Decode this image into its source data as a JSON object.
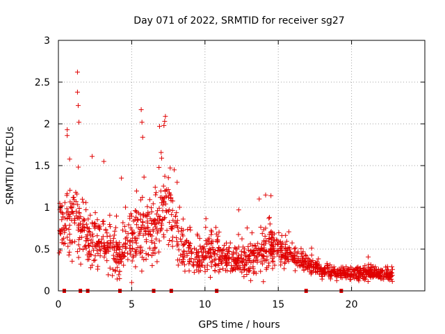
{
  "chart_data": {
    "type": "scatter",
    "title": "Day 071 of 2022, SRMTID for receiver sg27",
    "xlabel": "GPS time / hours",
    "ylabel": "SRMTID / TECUs",
    "xlim": [
      0,
      25
    ],
    "ylim": [
      0,
      3
    ],
    "x_ticks": [
      0,
      5,
      10,
      15,
      20
    ],
    "y_ticks": [
      0,
      0.5,
      1,
      1.5,
      2,
      2.5,
      3
    ],
    "x_tick_labels": [
      "0",
      "5",
      "10",
      "15",
      "20"
    ],
    "y_tick_labels": [
      "0",
      "0.5",
      "1",
      "1.5",
      "2",
      "2.5",
      "3"
    ],
    "grid": true,
    "marker": "+",
    "color": "#e00000",
    "series": [
      {
        "name": "SRMTID",
        "envelope": {
          "x": [
            0.0,
            0.5,
            1.0,
            1.5,
            2.0,
            2.5,
            3.0,
            3.5,
            4.0,
            4.5,
            5.0,
            5.5,
            6.0,
            6.5,
            7.0,
            7.5,
            8.0,
            8.5,
            9.0,
            9.5,
            10.0,
            10.5,
            11.0,
            11.5,
            12.0,
            12.5,
            13.0,
            13.5,
            14.0,
            14.5,
            15.0,
            15.5,
            16.0,
            16.5,
            17.0,
            17.5,
            18.0,
            18.5,
            19.0,
            19.5,
            20.0,
            20.5,
            21.0,
            21.5,
            22.0,
            22.5,
            23.0
          ],
          "center": [
            0.75,
            0.85,
            0.9,
            0.8,
            0.6,
            0.55,
            0.6,
            0.5,
            0.4,
            0.5,
            0.6,
            0.7,
            0.75,
            0.7,
            0.9,
            1.0,
            0.7,
            0.5,
            0.45,
            0.4,
            0.45,
            0.5,
            0.45,
            0.4,
            0.35,
            0.35,
            0.35,
            0.45,
            0.5,
            0.55,
            0.5,
            0.45,
            0.4,
            0.35,
            0.32,
            0.28,
            0.25,
            0.22,
            0.2,
            0.2,
            0.2,
            0.2,
            0.22,
            0.2,
            0.2,
            0.2,
            0.2
          ],
          "spread": [
            0.35,
            0.45,
            0.5,
            0.45,
            0.35,
            0.35,
            0.35,
            0.35,
            0.3,
            0.35,
            0.4,
            0.45,
            0.45,
            0.45,
            0.5,
            0.5,
            0.4,
            0.3,
            0.25,
            0.25,
            0.3,
            0.3,
            0.25,
            0.22,
            0.2,
            0.2,
            0.22,
            0.25,
            0.3,
            0.3,
            0.25,
            0.2,
            0.18,
            0.15,
            0.12,
            0.1,
            0.1,
            0.1,
            0.08,
            0.08,
            0.08,
            0.08,
            0.1,
            0.1,
            0.08,
            0.08,
            0.08
          ]
        },
        "outliers": [
          {
            "x": 1.3,
            "y": 2.62
          },
          {
            "x": 1.3,
            "y": 2.38
          },
          {
            "x": 1.35,
            "y": 2.22
          },
          {
            "x": 1.4,
            "y": 2.02
          },
          {
            "x": 0.6,
            "y": 1.93
          },
          {
            "x": 0.6,
            "y": 1.86
          },
          {
            "x": 5.65,
            "y": 2.17
          },
          {
            "x": 5.7,
            "y": 2.02
          },
          {
            "x": 7.3,
            "y": 2.09
          },
          {
            "x": 7.25,
            "y": 2.03
          },
          {
            "x": 7.2,
            "y": 1.98
          },
          {
            "x": 6.9,
            "y": 1.97
          },
          {
            "x": 5.75,
            "y": 1.84
          },
          {
            "x": 2.3,
            "y": 1.61
          },
          {
            "x": 14.5,
            "y": 1.14
          },
          {
            "x": 13.7,
            "y": 1.1
          },
          {
            "x": 12.3,
            "y": 0.97
          },
          {
            "x": 7.9,
            "y": 1.45
          },
          {
            "x": 3.1,
            "y": 1.55
          },
          {
            "x": 4.3,
            "y": 1.35
          },
          {
            "x": 8.1,
            "y": 1.3
          }
        ]
      }
    ],
    "gap_markers_x": [
      0.4,
      1.5,
      2.0,
      4.2,
      6.5,
      7.7,
      10.8,
      16.9,
      19.3
    ]
  }
}
